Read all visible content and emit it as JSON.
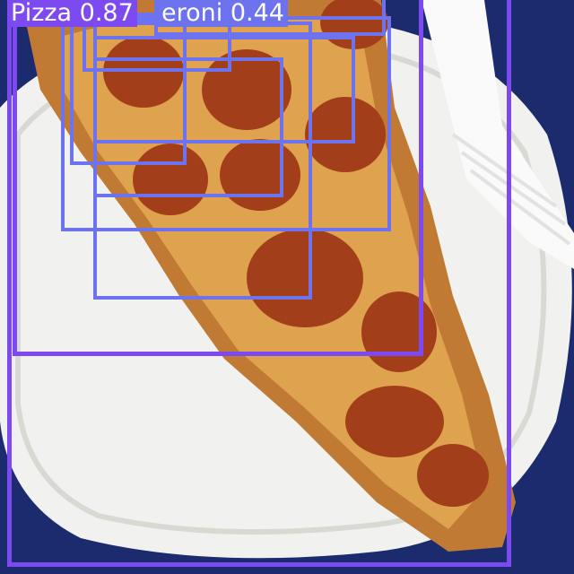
{
  "colors": {
    "background": "#1c2a6e",
    "plate": "#f1f1ef",
    "crust": "#c07a34",
    "cheese": "#dfa24e",
    "pepperoni": "#a23e1a",
    "box_pizza": "#7d49f0",
    "box_pepperoni": "#6d72ee"
  },
  "detections": {
    "pizza_label": "Pizza 0.87",
    "pepperoni_label": "eroni 0.44"
  }
}
